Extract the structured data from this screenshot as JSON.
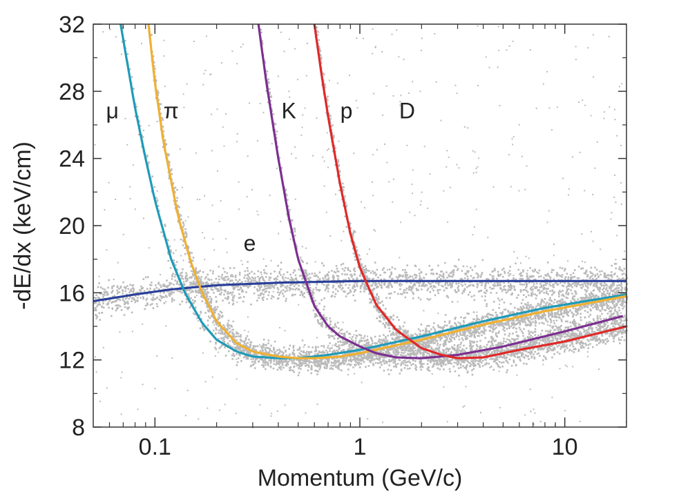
{
  "chart_data": {
    "type": "line",
    "title": "",
    "xlabel": "Momentum (GeV/c)",
    "ylabel": "-dE/dx (keV/cm)",
    "x_scale": "log",
    "xlim": [
      0.05,
      20
    ],
    "ylim": [
      8,
      32
    ],
    "x_ticks": [
      {
        "value": 0.1,
        "label": "0.1"
      },
      {
        "value": 1,
        "label": "1"
      },
      {
        "value": 10,
        "label": "10"
      }
    ],
    "y_ticks": [
      {
        "value": 8,
        "label": "8"
      },
      {
        "value": 12,
        "label": "12"
      },
      {
        "value": 16,
        "label": "16"
      },
      {
        "value": 20,
        "label": "20"
      },
      {
        "value": 24,
        "label": "24"
      },
      {
        "value": 28,
        "label": "28"
      },
      {
        "value": 32,
        "label": "32"
      }
    ],
    "series": [
      {
        "name": "e",
        "color": "#2a3f9a",
        "x": [
          0.05,
          0.08,
          0.12,
          0.2,
          0.4,
          1,
          3,
          10,
          20
        ],
        "y": [
          15.5,
          15.9,
          16.2,
          16.45,
          16.6,
          16.7,
          16.7,
          16.7,
          16.7
        ]
      },
      {
        "name": "μ",
        "color": "#1e9bb8",
        "x": [
          0.068,
          0.08,
          0.09,
          0.1,
          0.12,
          0.14,
          0.17,
          0.2,
          0.25,
          0.3,
          0.4,
          0.5,
          0.7,
          1,
          2,
          4,
          8,
          20
        ],
        "y": [
          32,
          27,
          24,
          21.5,
          18,
          16,
          14.2,
          13.2,
          12.5,
          12.2,
          12.1,
          12.1,
          12.3,
          12.6,
          13.4,
          14.3,
          15.1,
          15.9
        ]
      },
      {
        "name": "π",
        "color": "#f0b030",
        "x": [
          0.093,
          0.1,
          0.11,
          0.13,
          0.15,
          0.17,
          0.2,
          0.25,
          0.3,
          0.4,
          0.5,
          0.6,
          0.8,
          1,
          2,
          4,
          8,
          20
        ],
        "y": [
          32,
          28.5,
          25,
          20.5,
          17.8,
          16,
          14.3,
          13,
          12.5,
          12.2,
          12.1,
          12.1,
          12.2,
          12.4,
          13.2,
          14.1,
          14.9,
          15.8
        ]
      },
      {
        "name": "K",
        "color": "#7b2f90",
        "x": [
          0.32,
          0.35,
          0.4,
          0.45,
          0.5,
          0.6,
          0.7,
          0.8,
          1,
          1.2,
          1.5,
          2,
          3,
          5,
          10,
          19
        ],
        "y": [
          32,
          28.5,
          24,
          20.5,
          18,
          15.2,
          14,
          13.4,
          12.8,
          12.4,
          12.15,
          12.1,
          12.3,
          12.8,
          13.7,
          14.6
        ]
      },
      {
        "name": "p",
        "color": "#e02828",
        "x": [
          0.6,
          0.65,
          0.7,
          0.8,
          0.9,
          1,
          1.2,
          1.5,
          2,
          2.5,
          3,
          4,
          6,
          10,
          20
        ],
        "y": [
          32,
          29,
          26.5,
          22.5,
          19.5,
          17.5,
          15.3,
          13.8,
          12.7,
          12.3,
          12.1,
          12.15,
          12.6,
          13.1,
          14
        ]
      }
    ],
    "annotations": [
      {
        "text": "μ",
        "x": 0.062,
        "y": 26.4
      },
      {
        "text": "π",
        "x": 0.12,
        "y": 26.4
      },
      {
        "text": "K",
        "x": 0.45,
        "y": 26.4
      },
      {
        "text": "p",
        "x": 0.86,
        "y": 26.4
      },
      {
        "text": "D",
        "x": 1.7,
        "y": 26.4
      },
      {
        "text": "e",
        "x": 0.29,
        "y": 18.5
      }
    ],
    "grid": false,
    "legend": "none"
  }
}
